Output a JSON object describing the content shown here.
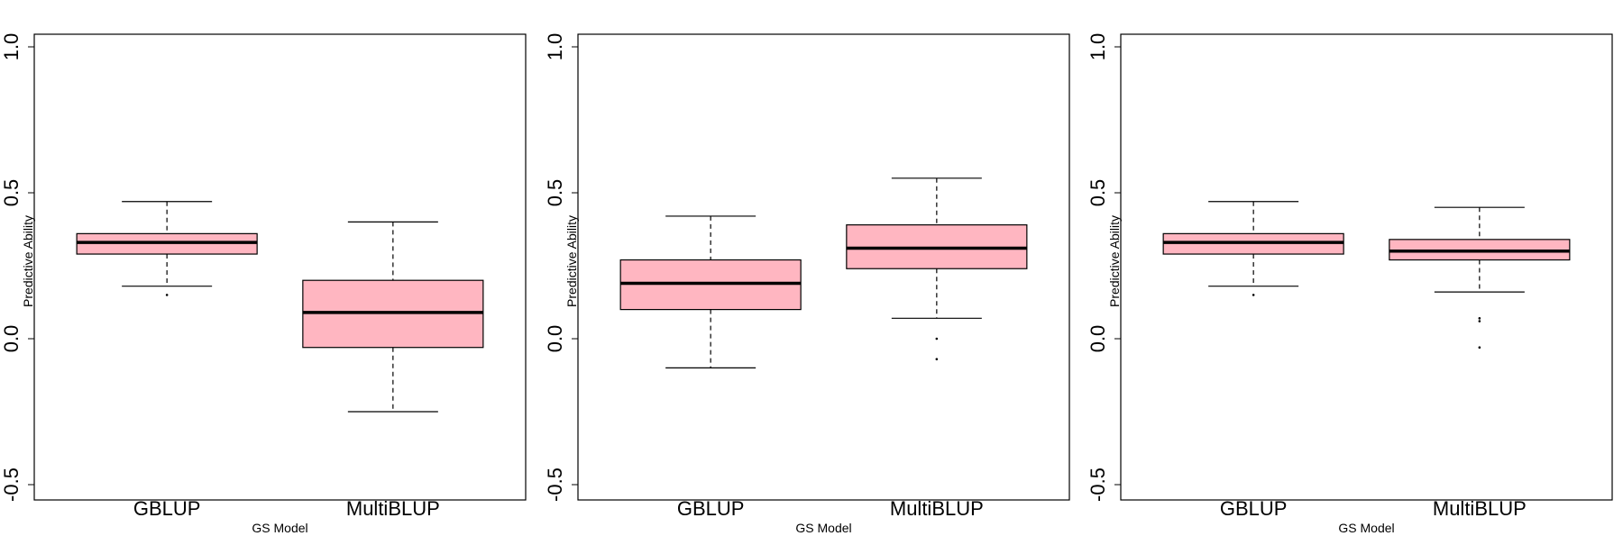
{
  "colors": {
    "box_fill": "#ffb6c1",
    "stroke": "#000000",
    "background": "#ffffff"
  },
  "chart_data": [
    {
      "type": "boxplot",
      "xlabel": "GS Model",
      "ylabel": "Predictive Ability",
      "ylim": [
        -0.5,
        1.0
      ],
      "yticks": [
        "-0.5",
        "0.0",
        "0.5",
        "1.0"
      ],
      "categories": [
        "GBLUP",
        "MultiBLUP"
      ],
      "boxes": [
        {
          "whisker_low": 0.18,
          "q1": 0.29,
          "median": 0.33,
          "q3": 0.36,
          "whisker_high": 0.47,
          "outliers": [
            0.15
          ]
        },
        {
          "whisker_low": -0.25,
          "q1": -0.03,
          "median": 0.09,
          "q3": 0.2,
          "whisker_high": 0.4,
          "outliers": []
        }
      ]
    },
    {
      "type": "boxplot",
      "xlabel": "GS Model",
      "ylabel": "Predictive Ability",
      "ylim": [
        -0.5,
        1.0
      ],
      "yticks": [
        "-0.5",
        "0.0",
        "0.5",
        "1.0"
      ],
      "categories": [
        "GBLUP",
        "MultiBLUP"
      ],
      "boxes": [
        {
          "whisker_low": -0.1,
          "q1": 0.1,
          "median": 0.19,
          "q3": 0.27,
          "whisker_high": 0.42,
          "outliers": []
        },
        {
          "whisker_low": 0.07,
          "q1": 0.24,
          "median": 0.31,
          "q3": 0.39,
          "whisker_high": 0.55,
          "outliers": [
            0.0,
            -0.07
          ]
        }
      ]
    },
    {
      "type": "boxplot",
      "xlabel": "GS Model",
      "ylabel": "Predictive Ability",
      "ylim": [
        -0.5,
        1.0
      ],
      "yticks": [
        "-0.5",
        "0.0",
        "0.5",
        "1.0"
      ],
      "categories": [
        "GBLUP",
        "MultiBLUP"
      ],
      "boxes": [
        {
          "whisker_low": 0.18,
          "q1": 0.29,
          "median": 0.33,
          "q3": 0.36,
          "whisker_high": 0.47,
          "outliers": [
            0.15
          ]
        },
        {
          "whisker_low": 0.16,
          "q1": 0.27,
          "median": 0.3,
          "q3": 0.34,
          "whisker_high": 0.45,
          "outliers": [
            0.07,
            0.06,
            -0.03
          ]
        }
      ]
    }
  ]
}
